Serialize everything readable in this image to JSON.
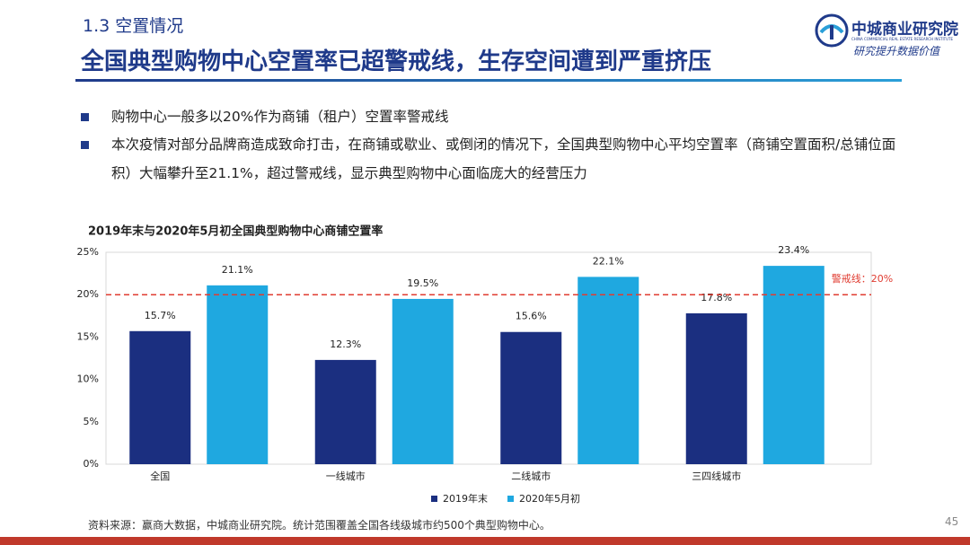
{
  "header": {
    "section": "1.3  空置情况",
    "title": "全国典型购物中心空置率已超警戒线，生存空间遭到严重挤压"
  },
  "logo": {
    "name": "中城商业研究院",
    "english": "CHINA COMMERCIAL REAL ESTATE RESEARCH INSTITUTE",
    "slogan": "研究提升数据价值"
  },
  "bullets": [
    "购物中心一般多以20%作为商铺（租户）空置率警戒线",
    "本次疫情对部分品牌商造成致命打击，在商铺或歇业、或倒闭的情况下，全国典型购物中心平均空置率（商铺空置面积/总铺位面积）大幅攀升至21.1%，超过警戒线，显示典型购物中心面临庞大的经营压力"
  ],
  "chart_data": {
    "type": "bar",
    "title": "2019年末与2020年5月初全国典型购物中心商铺空置率",
    "categories": [
      "全国",
      "一线城市",
      "二线城市",
      "三四线城市"
    ],
    "series": [
      {
        "name": "2019年末",
        "color": "#1b2f80",
        "values": [
          15.7,
          12.3,
          15.6,
          17.8
        ],
        "value_labels": [
          "15.7%",
          "12.3%",
          "15.6%",
          "17.8%"
        ]
      },
      {
        "name": "2020年5月初",
        "color": "#1fa8e0",
        "values": [
          21.1,
          19.5,
          22.1,
          23.4
        ],
        "value_labels": [
          "21.1%",
          "19.5%",
          "22.1%",
          "23.4%"
        ]
      }
    ],
    "ylim": [
      0,
      25
    ],
    "yticks": [
      {
        "value": 0,
        "label": "0%"
      },
      {
        "value": 5,
        "label": "5%"
      },
      {
        "value": 10,
        "label": "10%"
      },
      {
        "value": 15,
        "label": "15%"
      },
      {
        "value": 20,
        "label": "20%"
      },
      {
        "value": 25,
        "label": "25%"
      }
    ],
    "reference_line": {
      "value": 20,
      "label": "警戒线：20%",
      "color": "#e03c31"
    },
    "grid": false,
    "legend": "bottom"
  },
  "source": "资料来源：赢商大数据，中城商业研究院。统计范围覆盖全国各线级城市约500个典型购物中心。",
  "page_number": "45"
}
